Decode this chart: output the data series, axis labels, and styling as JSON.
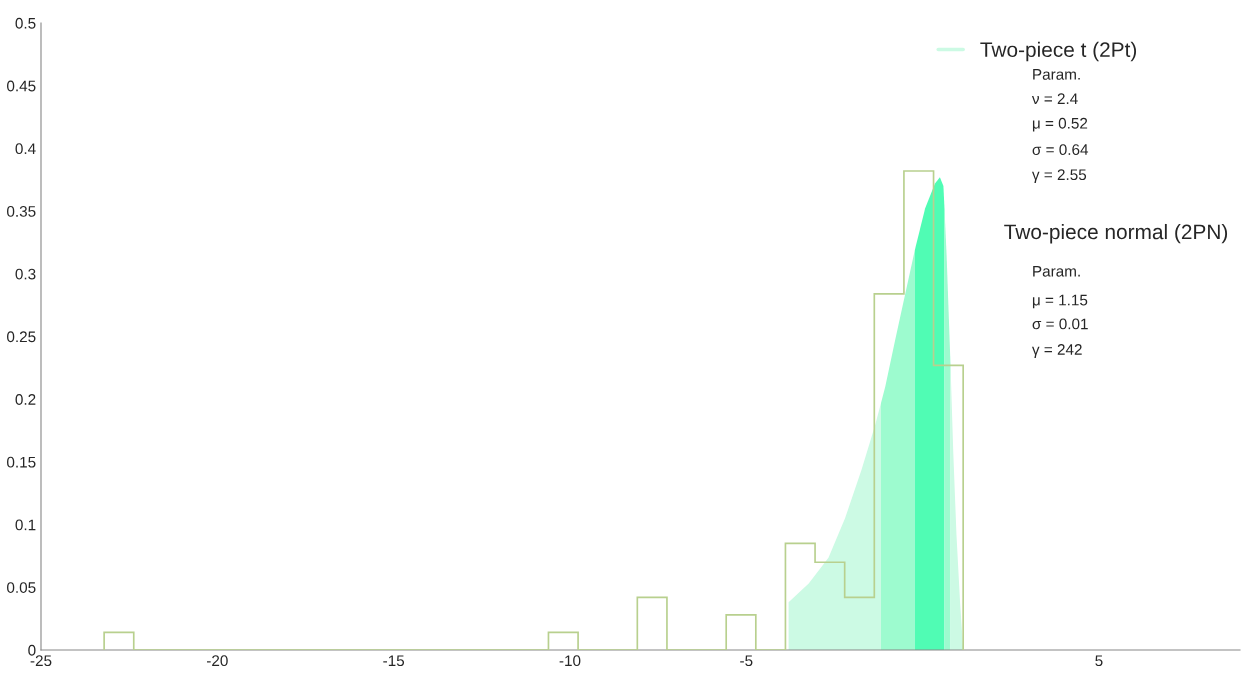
{
  "chart_data": {
    "type": "histogram",
    "color": "#b8d08e",
    "bins": [
      -23.21,
      -22.37,
      -21.53,
      -20.69,
      -19.85,
      -19.01,
      -18.17,
      -17.33,
      -16.49,
      -15.65,
      -14.81,
      -13.97,
      -13.13,
      -12.29,
      -11.45,
      -10.61,
      -9.77,
      -8.93,
      -8.09,
      -7.25,
      -6.41,
      -5.57,
      -4.73,
      -3.89,
      -3.05,
      -2.21,
      -1.37,
      -0.53,
      0.31,
      1.15
    ],
    "values": [
      0.014,
      0,
      0,
      0,
      0,
      0,
      0,
      0,
      0,
      0,
      0,
      0,
      0,
      0,
      0,
      0.014,
      0,
      0,
      0.042,
      0,
      0,
      0.028,
      0,
      0.085,
      0.07,
      0.042,
      0.284,
      0.382,
      0.227
    ],
    "series": [
      {
        "type": "area",
        "name": "Two-piece t (2Pt)",
        "color": "#ccfae4",
        "x": [
          -3.8,
          -3.23,
          -2.67,
          -2.2,
          -1.73,
          -1.35,
          -1.18
        ],
        "values": [
          0.038,
          0.053,
          0.0735,
          0.105,
          0.144,
          0.179,
          0.197
        ]
      },
      {
        "type": "area",
        "color": "#9dfbcf",
        "x": [
          -1.18,
          -1.06,
          -0.78,
          -0.5,
          -0.22
        ],
        "values": [
          0.197,
          0.21,
          0.247,
          0.283,
          0.319
        ]
      },
      {
        "type": "area",
        "color": "#50fcb4",
        "x": [
          -0.22,
          0.07,
          0.35,
          0.49,
          0.59,
          0.62
        ],
        "values": [
          0.319,
          0.352,
          0.372,
          0.377,
          0.37,
          0.352
        ]
      },
      {
        "type": "area",
        "color": "#9dfbcf",
        "x": [
          0.62,
          0.68,
          0.79
        ],
        "values": [
          0.352,
          0.315,
          0.228
        ]
      },
      {
        "type": "area",
        "color": "#ccfae4",
        "x": [
          0.79,
          0.87,
          0.96,
          1.06,
          1.15
        ],
        "values": [
          0.228,
          0.157,
          0.092,
          0.039,
          0.0
        ]
      }
    ],
    "xlim": [
      -25,
      9
    ],
    "ylim": [
      0,
      0.5
    ],
    "xticks": [
      -25,
      -20,
      -15,
      -10,
      -5,
      5
    ],
    "yticks": [
      0,
      0.05,
      0.1,
      0.15,
      0.2,
      0.25,
      0.3,
      0.35,
      0.4,
      0.45,
      0.5
    ],
    "grid": false,
    "legend": "top right",
    "annotations": [
      "Param.",
      "ν = 2.4",
      "μ = 0.52",
      "σ = 0.64",
      "γ = 2.55",
      "Two-piece normal (2PN)",
      "Param.",
      "μ = 1.15",
      "σ = 0.01",
      "γ = 242"
    ]
  }
}
